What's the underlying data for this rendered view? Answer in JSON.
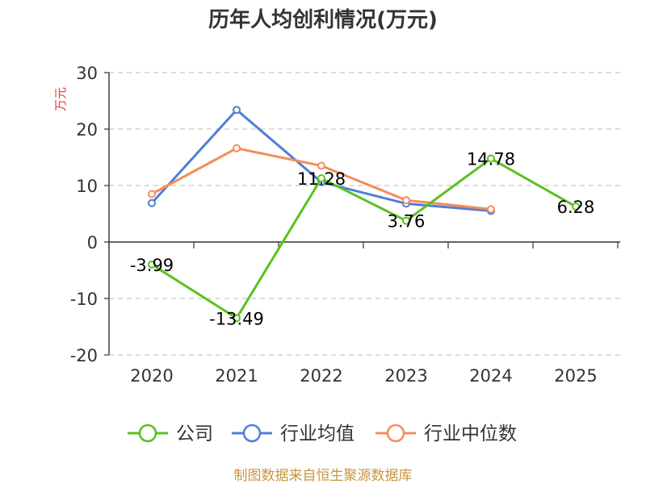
{
  "chart_data": {
    "type": "line",
    "title": "历年人均创利情况(万元)",
    "ylabel": "万元",
    "categories": [
      "2020",
      "2021",
      "2022",
      "2023",
      "2024",
      "2025"
    ],
    "ylim": [
      -20,
      30
    ],
    "yticks": [
      "30",
      "20",
      "10",
      "0",
      "-10",
      "-20"
    ],
    "ytick_values": [
      30,
      20,
      10,
      0,
      -10,
      -20
    ],
    "grid": true,
    "legend_position": "bottom",
    "series": [
      {
        "name": "公司",
        "color": "#5cc021",
        "values": [
          -3.99,
          -13.49,
          11.28,
          3.76,
          14.78,
          6.28
        ],
        "labels": [
          "-3.99",
          "-13.49",
          "11.28",
          "3.76",
          "14.78",
          "6.28"
        ]
      },
      {
        "name": "行业均值",
        "color": "#4f7fd9",
        "values": [
          6.9,
          23.4,
          10.6,
          6.8,
          5.5,
          null
        ]
      },
      {
        "name": "行业中位数",
        "color": "#f48c5a",
        "values": [
          8.5,
          16.6,
          13.5,
          7.4,
          5.8,
          null
        ]
      }
    ]
  },
  "source": "制图数据来自恒生聚源数据库"
}
